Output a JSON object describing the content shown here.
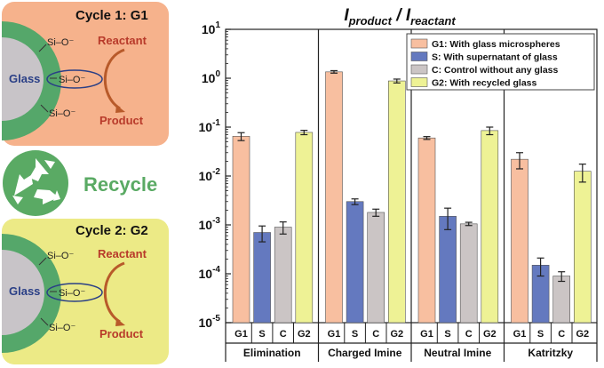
{
  "colors": {
    "cycle1_bg": "#f6b28c",
    "cycle2_bg": "#ecea86",
    "glass_core": "#c8c4c8",
    "glass_shell": "#55a76a",
    "recycle_green": "#5aaa64",
    "reactant_red": "#b83a2a",
    "glass_label": "#2a3f86",
    "G1": "#f8bfa0",
    "S": "#6479bf",
    "C": "#cbc5c5",
    "G2": "#eef295"
  },
  "schematic": {
    "cycle1_title": "Cycle 1: G1",
    "cycle2_title": "Cycle 2: G2",
    "recycle_label": "Recycle",
    "recycle_icon": "recycle-icon",
    "glass_label": "Glass",
    "reactant_label": "Reactant",
    "product_label": "Product",
    "silanol_groups": [
      "Si–O⁻",
      "Si–O⁻",
      "Si–O⁻"
    ]
  },
  "chart_data": {
    "type": "bar",
    "title": "I_product / I_reactant",
    "title_main_1": "I",
    "title_sub_1": "product",
    "title_sep": " / ",
    "title_main_2": "I",
    "title_sub_2": "reactant",
    "yscale": "log",
    "ylim": [
      1e-05,
      10
    ],
    "yticks": [
      {
        "value": 10,
        "base": "10",
        "exp": "1"
      },
      {
        "value": 1,
        "base": "10",
        "exp": "0"
      },
      {
        "value": 0.1,
        "base": "10",
        "exp": "-1"
      },
      {
        "value": 0.01,
        "base": "10",
        "exp": "-2"
      },
      {
        "value": 0.001,
        "base": "10",
        "exp": "-3"
      },
      {
        "value": 0.0001,
        "base": "10",
        "exp": "-4"
      },
      {
        "value": 1e-05,
        "base": "10",
        "exp": "-5"
      }
    ],
    "groups": [
      "Elimination",
      "Charged Imine",
      "Neutral Imine",
      "Katritzky"
    ],
    "categories": [
      "G1",
      "S",
      "C",
      "G2"
    ],
    "series": [
      {
        "key": "G1",
        "name": "G1: With glass microspheres",
        "values": [
          0.065,
          1.35,
          0.06,
          0.022
        ],
        "err": [
          0.012,
          0.08,
          0.004,
          0.008
        ]
      },
      {
        "key": "S",
        "name": "S: With supernatant of glass",
        "values": [
          0.0007,
          0.003,
          0.0015,
          0.00015
        ],
        "err": [
          0.00025,
          0.0004,
          0.0007,
          6e-05
        ]
      },
      {
        "key": "C",
        "name": "C: Control without any glass",
        "values": [
          0.0009,
          0.0018,
          0.00105,
          9e-05
        ],
        "err": [
          0.00025,
          0.0003,
          8e-05,
          2e-05
        ]
      },
      {
        "key": "G2",
        "name": "G2: With recycled glass",
        "values": [
          0.078,
          0.88,
          0.085,
          0.0125
        ],
        "err": [
          0.008,
          0.08,
          0.015,
          0.005
        ]
      }
    ],
    "legend_position": "top-right"
  }
}
